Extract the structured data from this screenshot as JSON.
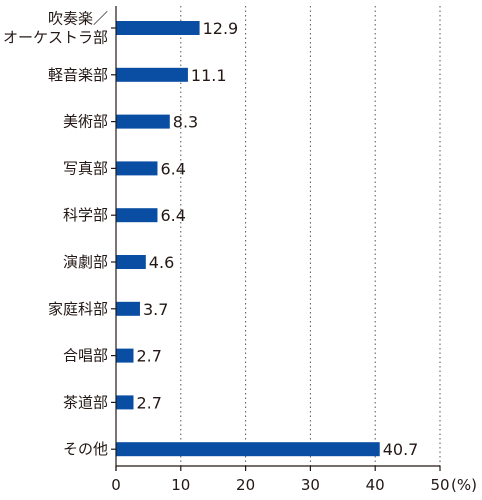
{
  "chart_data": {
    "type": "bar",
    "orientation": "horizontal",
    "categories": [
      "吹奏楽／オーケストラ部",
      "軽音楽部",
      "美術部",
      "写真部",
      "科学部",
      "演劇部",
      "家庭科部",
      "合唱部",
      "茶道部",
      "その他"
    ],
    "category_label_lines": [
      [
        "吹奏楽／",
        "オーケストラ部"
      ],
      [
        "軽音楽部"
      ],
      [
        "美術部"
      ],
      [
        "写真部"
      ],
      [
        "科学部"
      ],
      [
        "演劇部"
      ],
      [
        "家庭科部"
      ],
      [
        "合唱部"
      ],
      [
        "茶道部"
      ],
      [
        "その他"
      ]
    ],
    "values": [
      12.9,
      11.1,
      8.3,
      6.4,
      6.4,
      4.6,
      3.7,
      2.7,
      2.7,
      40.7
    ],
    "value_labels": [
      "12.9",
      "11.1",
      "8.3",
      "6.4",
      "6.4",
      "4.6",
      "3.7",
      "2.7",
      "2.7",
      "40.7"
    ],
    "xlim": [
      0,
      50
    ],
    "xticks": [
      0,
      10,
      20,
      30,
      40,
      50
    ],
    "unit": "(%)",
    "grid": "vertical dotted lines",
    "bar_color": "#0a4ea3",
    "text_color": "#231815",
    "grid_color": "#555555"
  }
}
